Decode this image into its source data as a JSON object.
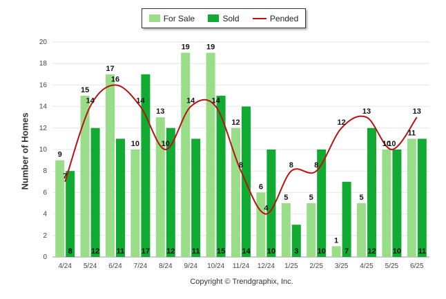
{
  "chart_data": {
    "type": "bar",
    "categories": [
      "4/24",
      "5/24",
      "6/24",
      "7/24",
      "8/24",
      "9/24",
      "10/24",
      "11/24",
      "12/24",
      "1/25",
      "2/25",
      "3/25",
      "4/25",
      "5/25",
      "6/25"
    ],
    "series": [
      {
        "name": "For Sale",
        "type": "bar",
        "color": "#99dd88",
        "values": [
          9,
          15,
          17,
          10,
          13,
          19,
          19,
          12,
          6,
          5,
          5,
          1,
          5,
          10,
          11
        ]
      },
      {
        "name": "Sold",
        "type": "bar",
        "color": "#11aa33",
        "values": [
          8,
          12,
          11,
          17,
          12,
          11,
          15,
          14,
          10,
          3,
          10,
          7,
          12,
          10,
          11
        ]
      },
      {
        "name": "Pended",
        "type": "line",
        "color": "#bb1111",
        "values": [
          7,
          14,
          16,
          14,
          10,
          14,
          14,
          8,
          4,
          8,
          8,
          12,
          13,
          10,
          13
        ]
      }
    ],
    "ylabel": "Number of Homes",
    "ylim": [
      0,
      20
    ],
    "yticks": [
      0,
      2,
      4,
      6,
      8,
      10,
      12,
      14,
      16,
      18,
      20
    ],
    "grid": true,
    "legend_position": "top-center"
  },
  "copyright": "Copyright © Trendgraphix, Inc."
}
